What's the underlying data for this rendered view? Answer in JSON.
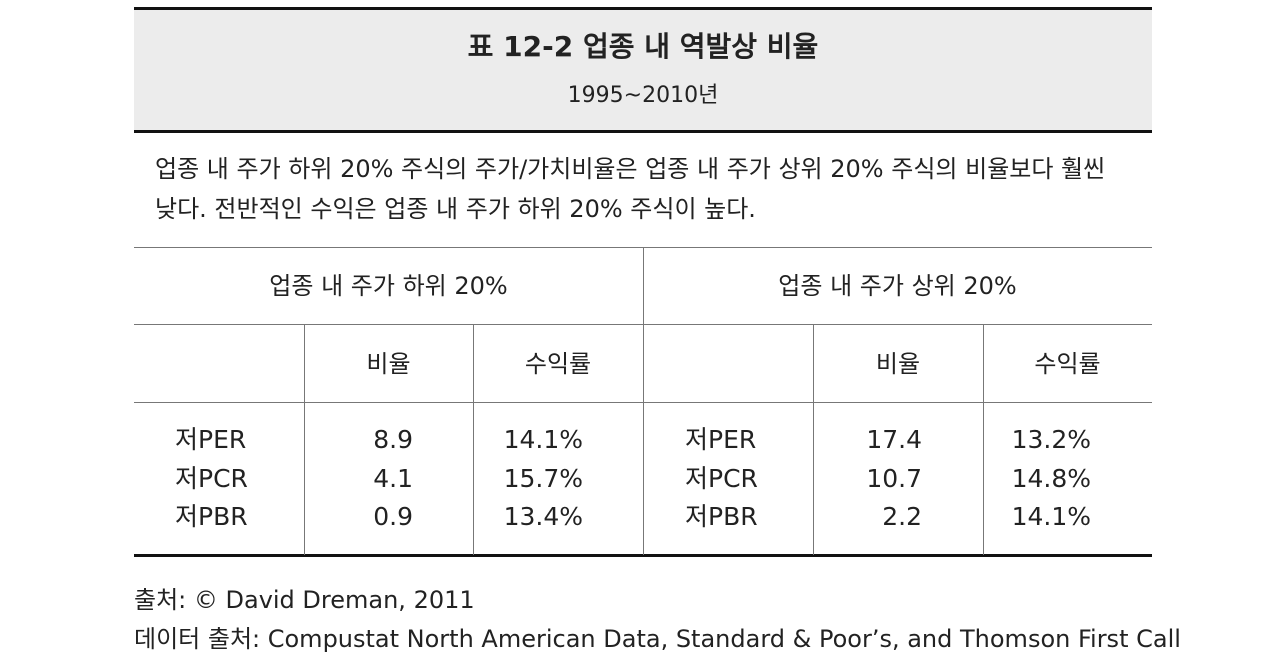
{
  "header": {
    "title": "표 12-2  업종 내 역발상 비율",
    "subtitle": "1995~2010년"
  },
  "description_lines": [
    "업종 내 주가 하위 20% 주식의 주가/가치비율은 업종 내 주가 상위 20% 주식의 비율보다 훨씬",
    "낮다. 전반적인 수익은 업종 내 주가 하위 20% 주식이 높다."
  ],
  "table": {
    "groups": [
      {
        "title": "업종 내 주가 하위 20%",
        "columns": [
          "비율",
          "수익률"
        ]
      },
      {
        "title": "업종 내 주가 상위 20%",
        "columns": [
          "비율",
          "수익률"
        ]
      }
    ],
    "rows": [
      [
        "저PER",
        "8.9",
        "14.1%",
        "저PER",
        "17.4",
        "13.2%"
      ],
      [
        "저PCR",
        "4.1",
        "15.7%",
        "저PCR",
        "10.7",
        "14.8%"
      ],
      [
        "저PBR",
        "0.9",
        "13.4%",
        "저PBR",
        "2.2",
        "14.1%"
      ]
    ]
  },
  "sources": [
    "출처: © David Dreman, 2011",
    "데이터 출처: Compustat North American Data, Standard & Poor’s, and Thomson First Call"
  ]
}
